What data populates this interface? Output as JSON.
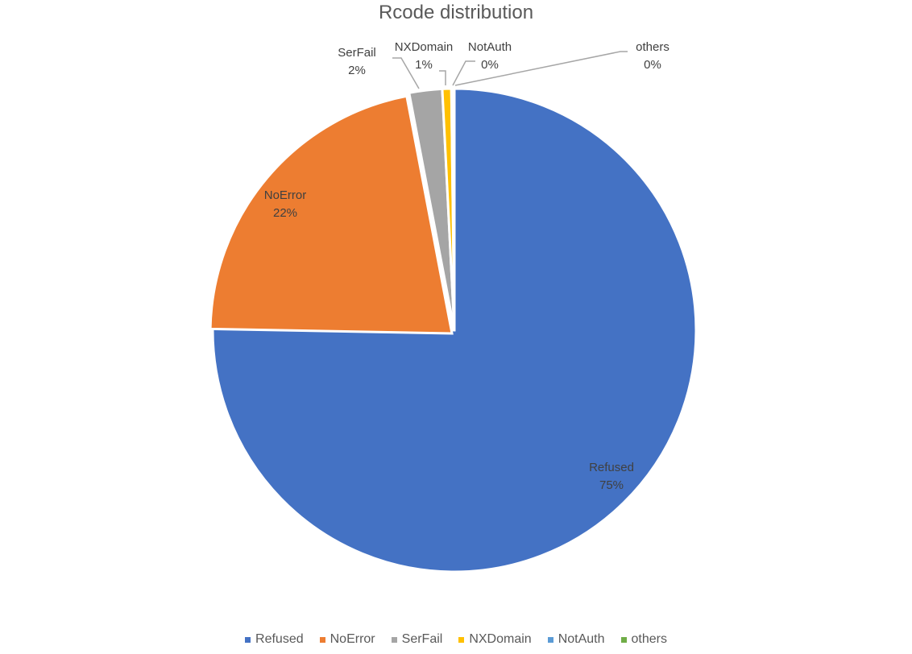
{
  "chart_data": {
    "type": "pie",
    "title": "Rcode distribution",
    "legend_position": "bottom",
    "start_angle_deg": 0,
    "direction": "clockwise",
    "slices": [
      {
        "label": "Refused",
        "value": 75.3,
        "percent_label": "75%",
        "color": "#4472C4"
      },
      {
        "label": "NoError",
        "value": 21.7,
        "percent_label": "22%",
        "color": "#ED7D31"
      },
      {
        "label": "SerFail",
        "value": 2.2,
        "percent_label": "2%",
        "color": "#A5A5A5"
      },
      {
        "label": "NXDomain",
        "value": 0.6,
        "percent_label": "1%",
        "color": "#FFC000"
      },
      {
        "label": "NotAuth",
        "value": 0.1,
        "percent_label": "0%",
        "color": "#5B9BD5"
      },
      {
        "label": "others",
        "value": 0.1,
        "percent_label": "0%",
        "color": "#70AD47"
      }
    ]
  }
}
